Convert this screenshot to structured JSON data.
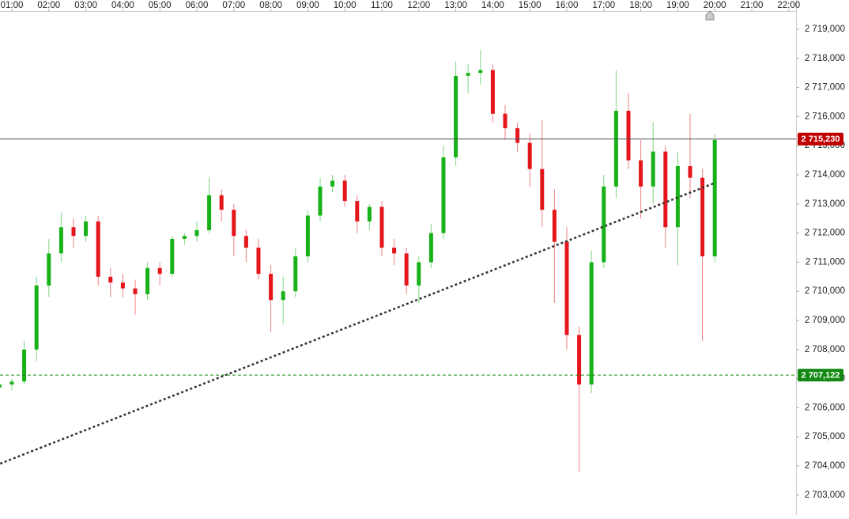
{
  "chart_data": {
    "type": "candlestick",
    "x": [
      40,
      60,
      80,
      100,
      120,
      140,
      160,
      180,
      200,
      220,
      240,
      260,
      280,
      300,
      320,
      340,
      360,
      380,
      400,
      420,
      440,
      460,
      480,
      500,
      520,
      540,
      560,
      580,
      600,
      620,
      640,
      660,
      680,
      700,
      720,
      740,
      760,
      780,
      800,
      820,
      840,
      860,
      880,
      900,
      920,
      940,
      960,
      980,
      1000,
      1020,
      1040,
      1060,
      1080,
      1100,
      1120,
      1140,
      1160,
      1180,
      1200
    ],
    "open": [
      2706.7,
      2706.8,
      2706.9,
      2708.0,
      2710.2,
      2711.3,
      2712.2,
      2711.9,
      2712.4,
      2710.5,
      2710.3,
      2710.1,
      2709.9,
      2710.8,
      2710.6,
      2711.8,
      2711.9,
      2712.1,
      2713.3,
      2712.8,
      2711.9,
      2711.5,
      2710.6,
      2709.7,
      2710.0,
      2711.2,
      2712.6,
      2713.6,
      2713.8,
      2713.1,
      2712.4,
      2712.9,
      2711.5,
      2711.3,
      2710.2,
      2711.0,
      2712.0,
      2714.6,
      2717.4,
      2717.5,
      2717.6,
      2716.1,
      2715.6,
      2715.1,
      2714.2,
      2712.8,
      2711.7,
      2708.5,
      2706.8,
      2711.0,
      2713.6,
      2716.2,
      2714.5,
      2713.6,
      2714.8,
      2712.2,
      2714.3,
      2713.9,
      2711.2
    ],
    "high": [
      2706.9,
      2707.0,
      2708.3,
      2710.5,
      2711.8,
      2712.7,
      2712.5,
      2712.6,
      2712.6,
      2710.8,
      2710.6,
      2710.4,
      2711.0,
      2711.0,
      2711.9,
      2712.0,
      2712.4,
      2713.9,
      2713.5,
      2713.0,
      2712.1,
      2711.8,
      2710.9,
      2710.5,
      2711.5,
      2712.8,
      2713.9,
      2714.0,
      2714.0,
      2713.3,
      2713.0,
      2713.1,
      2711.8,
      2711.5,
      2711.2,
      2712.3,
      2715.0,
      2717.9,
      2717.8,
      2718.3,
      2717.8,
      2716.4,
      2715.8,
      2715.4,
      2715.9,
      2713.5,
      2712.2,
      2708.8,
      2711.4,
      2714.0,
      2717.6,
      2716.8,
      2715.2,
      2715.8,
      2715.0,
      2714.8,
      2716.1,
      2714.2,
      2715.4
    ],
    "low": [
      2706.5,
      2706.6,
      2706.8,
      2707.6,
      2709.8,
      2711.0,
      2711.5,
      2711.7,
      2710.2,
      2709.8,
      2709.8,
      2709.2,
      2709.7,
      2710.2,
      2710.5,
      2711.6,
      2711.7,
      2712.0,
      2712.4,
      2711.2,
      2711.0,
      2710.4,
      2708.6,
      2708.9,
      2709.8,
      2711.0,
      2712.4,
      2713.4,
      2712.9,
      2712.0,
      2712.1,
      2711.2,
      2710.9,
      2709.9,
      2709.6,
      2710.8,
      2711.8,
      2714.3,
      2716.8,
      2717.1,
      2715.8,
      2715.2,
      2714.8,
      2713.6,
      2712.2,
      2709.6,
      2708.0,
      2703.8,
      2706.5,
      2710.8,
      2713.2,
      2714.2,
      2712.5,
      2713.0,
      2711.5,
      2710.9,
      2713.2,
      2708.3,
      2711.0
    ],
    "close": [
      2706.8,
      2706.9,
      2708.0,
      2710.2,
      2711.3,
      2712.2,
      2711.9,
      2712.4,
      2710.5,
      2710.3,
      2710.1,
      2709.9,
      2710.8,
      2710.6,
      2711.8,
      2711.9,
      2712.1,
      2713.3,
      2712.8,
      2711.9,
      2711.5,
      2710.6,
      2709.7,
      2710.0,
      2711.2,
      2712.6,
      2713.6,
      2713.8,
      2713.1,
      2712.4,
      2712.9,
      2711.5,
      2711.3,
      2710.2,
      2711.0,
      2712.0,
      2714.6,
      2717.4,
      2717.5,
      2717.6,
      2716.1,
      2715.6,
      2715.1,
      2714.2,
      2712.8,
      2711.7,
      2708.5,
      2706.8,
      2711.0,
      2713.6,
      2716.2,
      2714.5,
      2713.6,
      2714.8,
      2712.2,
      2714.3,
      2713.9,
      2711.2,
      2715.2
    ],
    "up_color": "#17b217",
    "down_color": "#e4161b",
    "xlim": [
      40.8,
      1331.8
    ],
    "xticks": [
      {
        "value": 60,
        "label": "01:00"
      },
      {
        "value": 120,
        "label": "02:00"
      },
      {
        "value": 180,
        "label": "03:00"
      },
      {
        "value": 240,
        "label": "04:00"
      },
      {
        "value": 300,
        "label": "05:00"
      },
      {
        "value": 360,
        "label": "06:00"
      },
      {
        "value": 420,
        "label": "07:00"
      },
      {
        "value": 480,
        "label": "08:00"
      },
      {
        "value": 540,
        "label": "09:00"
      },
      {
        "value": 600,
        "label": "10:00"
      },
      {
        "value": 660,
        "label": "11:00"
      },
      {
        "value": 720,
        "label": "12:00"
      },
      {
        "value": 780,
        "label": "13:00"
      },
      {
        "value": 840,
        "label": "14:00"
      },
      {
        "value": 900,
        "label": "15:00"
      },
      {
        "value": 960,
        "label": "16:00"
      },
      {
        "value": 1020,
        "label": "17:00"
      },
      {
        "value": 1080,
        "label": "18:00"
      },
      {
        "value": 1140,
        "label": "19:00"
      },
      {
        "value": 1200,
        "label": "20:00"
      },
      {
        "value": 1260,
        "label": "21:00"
      },
      {
        "value": 1320,
        "label": "22:00"
      }
    ],
    "ylim": [
      2702.315,
      2719.625
    ],
    "yticks": [
      {
        "value": 2703,
        "label": "2 703,000"
      },
      {
        "value": 2704,
        "label": "2 704,000"
      },
      {
        "value": 2705,
        "label": "2 705,000"
      },
      {
        "value": 2706,
        "label": "2 706,000"
      },
      {
        "value": 2707,
        "label": "2 707,000"
      },
      {
        "value": 2708,
        "label": "2 708,000"
      },
      {
        "value": 2709,
        "label": "2 709,000"
      },
      {
        "value": 2710,
        "label": "2 710,000"
      },
      {
        "value": 2711,
        "label": "2 711,000"
      },
      {
        "value": 2712,
        "label": "2 712,000"
      },
      {
        "value": 2713,
        "label": "2 713,000"
      },
      {
        "value": 2714,
        "label": "2 714,000"
      },
      {
        "value": 2715,
        "label": "2 715,000"
      },
      {
        "value": 2716,
        "label": "2 716,000"
      },
      {
        "value": 2717,
        "label": "2 717,000"
      },
      {
        "value": 2718,
        "label": "2 718,000"
      },
      {
        "value": 2719,
        "label": "2 719,000"
      }
    ],
    "price_lines": [
      {
        "value": 2715.23,
        "label": "2 715,230",
        "color": "#c00000",
        "line_color": "#555555",
        "dashed": false
      },
      {
        "value": 2707.122,
        "label": "2 707,122",
        "color": "#138a13",
        "line_color": "#138a13",
        "dashed": true
      }
    ],
    "trendline": {
      "x": [
        41,
        1201
      ],
      "y": [
        2704.08,
        2713.73
      ],
      "color": "#333333"
    }
  }
}
